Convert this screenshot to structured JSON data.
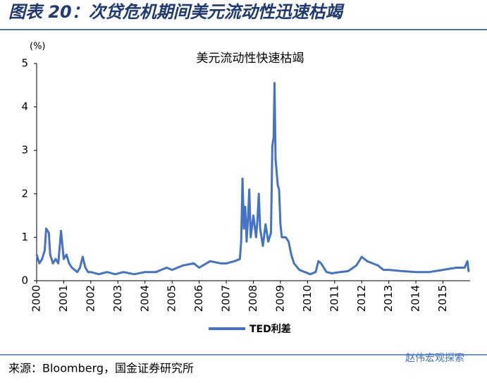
{
  "header": {
    "title": "图表 20：次贷危机期间美元流动性迅速枯竭"
  },
  "chart_data": {
    "type": "line",
    "title": "美元流动性快速枯竭",
    "y_label": "(%)",
    "series": [
      {
        "name": "TED利差",
        "color": "#4472c4",
        "x": [
          2000.0,
          2000.1,
          2000.2,
          2000.3,
          2000.35,
          2000.45,
          2000.5,
          2000.6,
          2000.7,
          2000.8,
          2000.9,
          2001.0,
          2001.1,
          2001.2,
          2001.3,
          2001.5,
          2001.6,
          2001.7,
          2001.8,
          2001.9,
          2002.0,
          2002.3,
          2002.6,
          2002.9,
          2003.2,
          2003.6,
          2004.0,
          2004.4,
          2004.8,
          2005.0,
          2005.4,
          2005.8,
          2006.0,
          2006.4,
          2006.8,
          2007.0,
          2007.3,
          2007.5,
          2007.55,
          2007.6,
          2007.65,
          2007.7,
          2007.75,
          2007.8,
          2007.85,
          2007.9,
          2008.0,
          2008.1,
          2008.15,
          2008.2,
          2008.25,
          2008.35,
          2008.45,
          2008.55,
          2008.65,
          2008.7,
          2008.75,
          2008.78,
          2008.82,
          2008.9,
          2008.95,
          2009.0,
          2009.05,
          2009.2,
          2009.3,
          2009.4,
          2009.5,
          2009.7,
          2009.9,
          2010.1,
          2010.3,
          2010.4,
          2010.5,
          2010.7,
          2010.9,
          2011.2,
          2011.5,
          2011.8,
          2012.0,
          2012.2,
          2012.4,
          2012.6,
          2012.8,
          2013.0,
          2013.5,
          2014.0,
          2014.5,
          2015.0,
          2015.5,
          2015.8,
          2015.9,
          2015.95
        ],
        "values": [
          0.6,
          0.4,
          0.5,
          0.7,
          1.2,
          1.1,
          0.6,
          0.4,
          0.5,
          0.4,
          1.15,
          0.5,
          0.6,
          0.4,
          0.3,
          0.2,
          0.3,
          0.55,
          0.3,
          0.2,
          0.2,
          0.15,
          0.2,
          0.15,
          0.2,
          0.15,
          0.2,
          0.2,
          0.3,
          0.25,
          0.35,
          0.4,
          0.3,
          0.45,
          0.4,
          0.4,
          0.45,
          0.5,
          0.9,
          2.35,
          1.2,
          1.7,
          0.9,
          1.4,
          2.1,
          1.0,
          1.5,
          1.0,
          1.4,
          2.0,
          1.2,
          0.8,
          1.3,
          0.9,
          1.1,
          3.1,
          3.3,
          4.55,
          2.8,
          2.2,
          2.1,
          1.3,
          1.0,
          1.0,
          0.9,
          0.6,
          0.4,
          0.25,
          0.2,
          0.15,
          0.2,
          0.45,
          0.4,
          0.2,
          0.17,
          0.2,
          0.22,
          0.35,
          0.55,
          0.45,
          0.4,
          0.35,
          0.25,
          0.25,
          0.22,
          0.2,
          0.2,
          0.25,
          0.3,
          0.3,
          0.45,
          0.2
        ]
      }
    ],
    "xlim": [
      2000,
      2016
    ],
    "xticks": [
      2000,
      2001,
      2002,
      2003,
      2004,
      2005,
      2006,
      2007,
      2008,
      2009,
      2010,
      2011,
      2012,
      2013,
      2014,
      2015
    ],
    "ylim": [
      0,
      5
    ],
    "yticks": [
      0,
      1,
      2,
      3,
      4,
      5
    ],
    "grid": false
  },
  "footer": {
    "source": "来源：Bloomberg，国金证券研究所",
    "watermark": "赵伟宏观探索"
  }
}
